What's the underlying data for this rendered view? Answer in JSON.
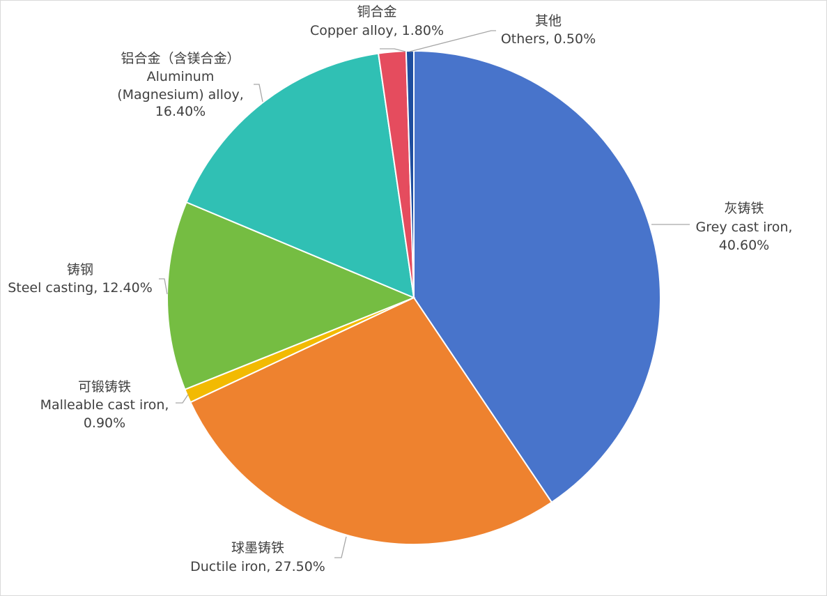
{
  "chart_data": {
    "type": "pie",
    "start_angle_deg": 0,
    "direction": "clockwise",
    "slices": [
      {
        "label_cn": "灰铸铁",
        "label": "Grey cast iron",
        "value": 40.6,
        "value_text": "40.60%",
        "color": "#4874cb"
      },
      {
        "label_cn": "球墨铸铁",
        "label": "Ductile iron",
        "value": 27.5,
        "value_text": "27.50%",
        "color": "#ee822f"
      },
      {
        "label_cn": "可锻铸铁",
        "label": "Malleable cast iron",
        "value": 0.9,
        "value_text": "0.90%",
        "color": "#f2ba02"
      },
      {
        "label_cn": "铸钢",
        "label": "Steel casting",
        "value": 12.4,
        "value_text": "12.40%",
        "color": "#75bd42"
      },
      {
        "label_cn": "铝合金（含镁合金）",
        "label": "Aluminum (Magnesium) alloy",
        "value": 16.4,
        "value_text": "16.40%",
        "color": "#30c0b4"
      },
      {
        "label_cn": "铜合金",
        "label": "Copper alloy",
        "value": 1.8,
        "value_text": "1.80%",
        "color": "#e54c5e"
      },
      {
        "label_cn": "其他",
        "label": "Others",
        "value": 0.5,
        "value_text": "0.50%",
        "color": "#1f4e9e"
      }
    ]
  }
}
